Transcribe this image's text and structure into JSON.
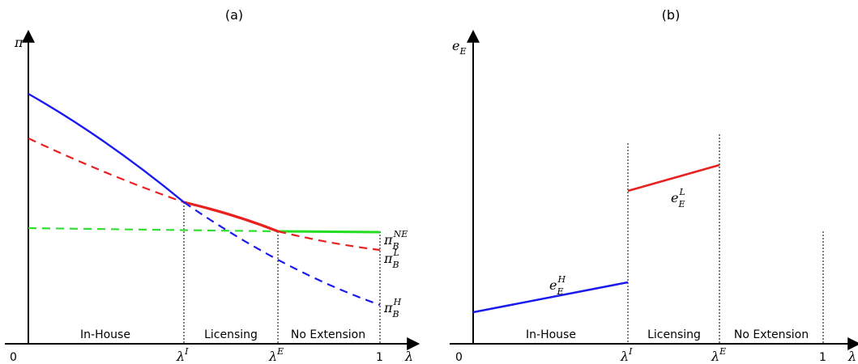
{
  "panels": [
    {
      "id": "a",
      "title": "(a)",
      "y_axis_symbol": "π",
      "x_axis_symbol": "λ",
      "origin_label": "0",
      "x_end_label": "1",
      "threshold_labels": [
        {
          "base": "λ",
          "sup": "I"
        },
        {
          "base": "λ",
          "sup": "E"
        }
      ],
      "regions": [
        "In-House",
        "Licensing",
        "No Extension"
      ],
      "curve_labels": [
        {
          "base": "π",
          "sub": "B",
          "sup": "NE",
          "color": "#00cc00"
        },
        {
          "base": "π",
          "sub": "B",
          "sup": "L",
          "color": "#ee2222"
        },
        {
          "base": "π",
          "sub": "B",
          "sup": "H",
          "color": "#1a1aee"
        }
      ]
    },
    {
      "id": "b",
      "title": "(b)",
      "y_axis_symbol": {
        "base": "e",
        "sub": "E"
      },
      "x_axis_symbol": "λ",
      "origin_label": "0",
      "x_end_label": "1",
      "threshold_labels": [
        {
          "base": "λ",
          "sup": "I"
        },
        {
          "base": "λ",
          "sup": "E"
        }
      ],
      "regions": [
        "In-House",
        "Licensing",
        "No Extension"
      ],
      "curve_labels": [
        {
          "base": "e",
          "sub": "E",
          "sup": "H",
          "color": "#1a1aee"
        },
        {
          "base": "e",
          "sub": "E",
          "sup": "L",
          "color": "#ee2222"
        }
      ]
    }
  ]
}
